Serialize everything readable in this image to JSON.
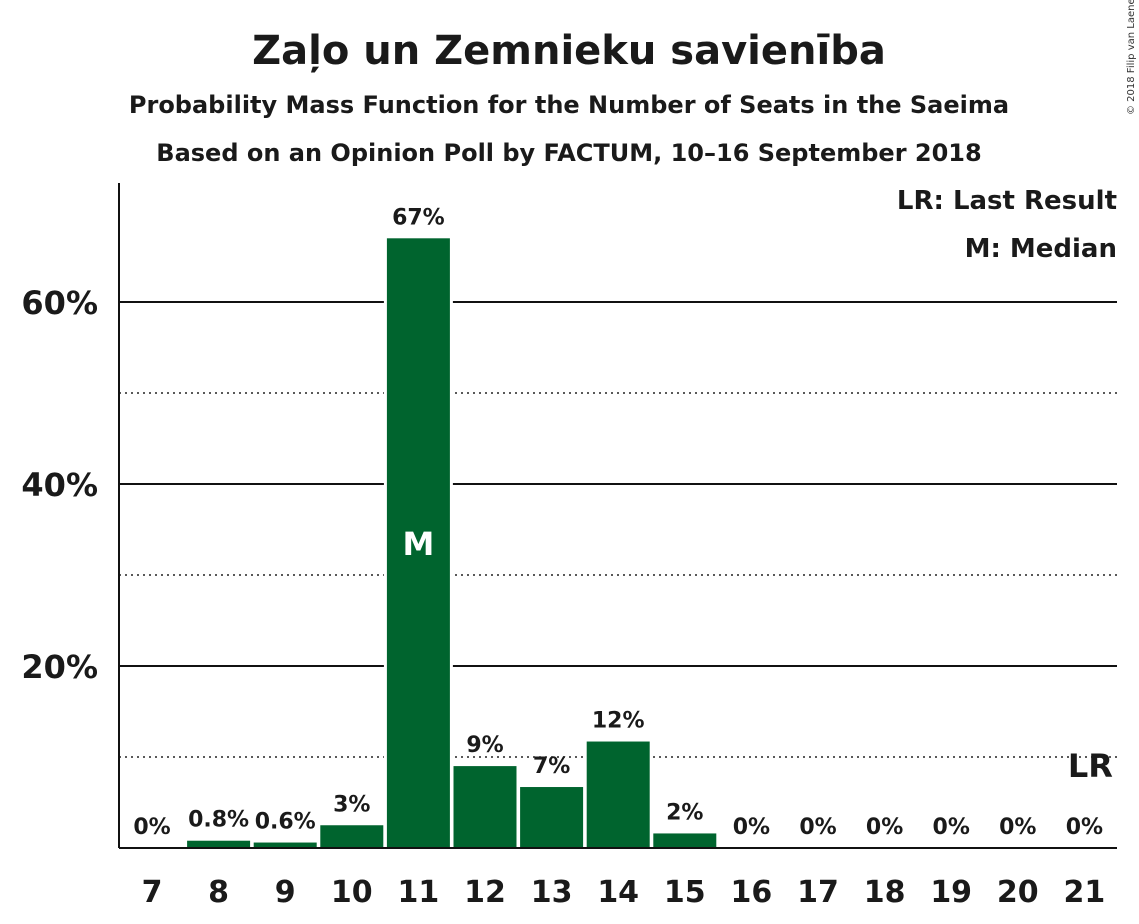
{
  "title": "Zaļo un Zemnieku savienība",
  "subtitle1": "Probability Mass Function for the Number of Seats in the Saeima",
  "subtitle2": "Based on an Opinion Poll by FACTUM, 10–16 September 2018",
  "copyright": "© 2018 Filip van Laenen",
  "legend": {
    "lr": "LR: Last Result",
    "m": "M: Median"
  },
  "colors": {
    "bar": "#00642e",
    "text": "#1a1a1a"
  },
  "chart_data": {
    "type": "bar",
    "categories": [
      "7",
      "8",
      "9",
      "10",
      "11",
      "12",
      "13",
      "14",
      "15",
      "16",
      "17",
      "18",
      "19",
      "20",
      "21"
    ],
    "values": [
      0,
      0.8,
      0.6,
      2.5,
      67,
      9,
      6.7,
      11.7,
      1.6,
      0,
      0,
      0,
      0,
      0,
      0
    ],
    "data_labels": [
      "0%",
      "0.8%",
      "0.6%",
      "3%",
      "67%",
      "9%",
      "7%",
      "12%",
      "2%",
      "0%",
      "0%",
      "0%",
      "0%",
      "0%",
      "0%"
    ],
    "ylim": [
      0,
      73
    ],
    "yticks": [
      20,
      40,
      60
    ],
    "ytick_labels": [
      "20%",
      "40%",
      "60%"
    ],
    "minor_gridlines": [
      10,
      30,
      50
    ],
    "median": {
      "category": "11",
      "label": "M"
    },
    "last_result": {
      "category": "21",
      "label": "LR"
    },
    "legend_position": "top-right"
  }
}
